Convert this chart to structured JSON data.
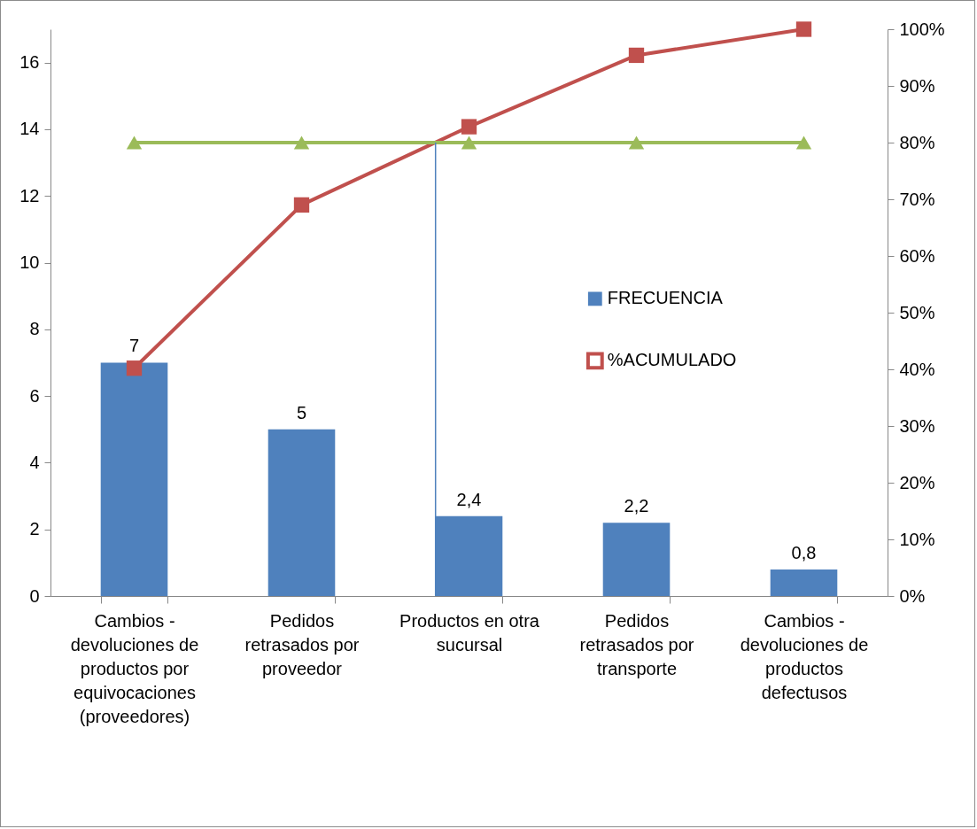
{
  "chart_data": {
    "type": "bar",
    "categories": [
      "Cambios - devoluciones de productos por equivocaciones (proveedores)",
      "Pedidos retrasados por proveedor",
      "Productos en otra sucursal",
      "Pedidos retrasados por transporte",
      "Cambios - devoluciones de productos defectusos"
    ],
    "series": [
      {
        "name": "FRECUENCIA",
        "color": "#4f81bd",
        "values": [
          7,
          5,
          2.4,
          2.2,
          0.8
        ],
        "value_labels": [
          "7",
          "5",
          "2,4",
          "2,2",
          "0,8"
        ]
      },
      {
        "name": "%ACUMULADO",
        "type": "line",
        "axis": "y2",
        "color": "#c0504d",
        "marker": "square",
        "values": [
          40.2,
          69.0,
          82.8,
          95.4,
          100
        ]
      },
      {
        "type": "line",
        "axis": "y2",
        "color": "#9bbb59",
        "marker": "triangle",
        "values": [
          80,
          80,
          80,
          80,
          80
        ]
      }
    ],
    "ref_lines": [
      {
        "axis": "x",
        "value": "Productos en otra sucursal",
        "color": "#4f81bd"
      }
    ],
    "ylim": [
      0,
      17
    ],
    "yticks": [
      0,
      2,
      4,
      6,
      8,
      10,
      12,
      14,
      16
    ],
    "y2lim": [
      0,
      100
    ],
    "y2ticks": [
      {
        "value": 0,
        "label": "0%"
      },
      {
        "value": 10,
        "label": "10%"
      },
      {
        "value": 20,
        "label": "20%"
      },
      {
        "value": 30,
        "label": "30%"
      },
      {
        "value": 40,
        "label": "40%"
      },
      {
        "value": 50,
        "label": "50%"
      },
      {
        "value": 60,
        "label": "60%"
      },
      {
        "value": 70,
        "label": "70%"
      },
      {
        "value": 80,
        "label": "80%"
      },
      {
        "value": 90,
        "label": "90%"
      },
      {
        "value": 100,
        "label": "100%"
      }
    ],
    "grid": false,
    "legend": "right"
  }
}
